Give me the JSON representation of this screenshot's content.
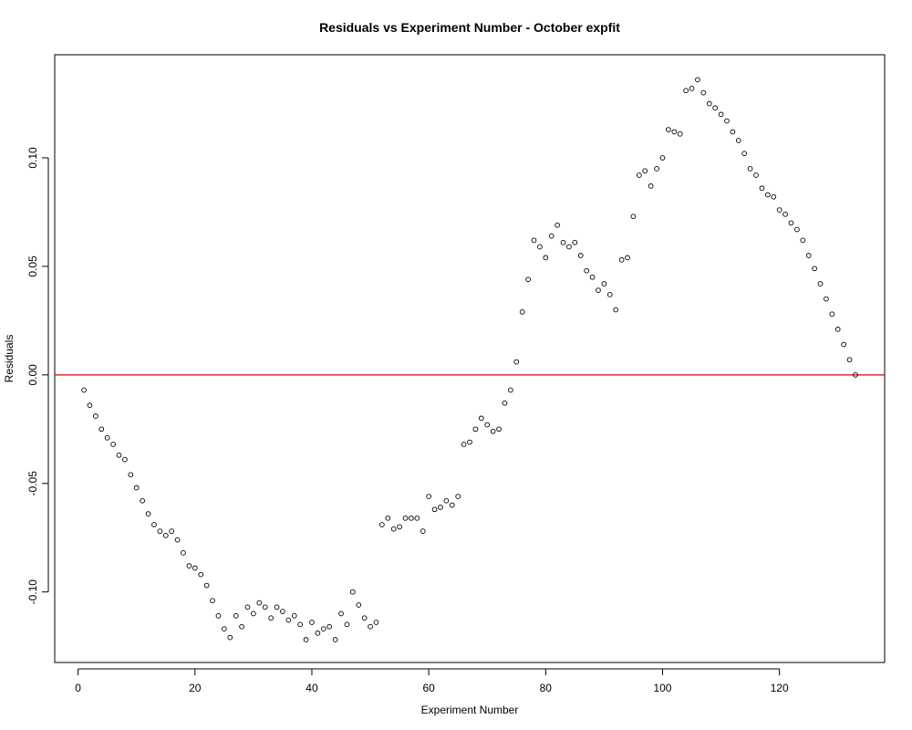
{
  "chart_data": {
    "type": "scatter",
    "title": "Residuals vs Experiment Number - October expfit",
    "xlabel": "Experiment Number",
    "ylabel": "Residuals",
    "xlim": [
      -4,
      138
    ],
    "ylim": [
      -0.1325,
      0.1475
    ],
    "xticks": [
      0,
      20,
      40,
      60,
      80,
      100,
      120
    ],
    "yticks": [
      -0.1,
      -0.05,
      0.0,
      0.05,
      0.1
    ],
    "ytick_labels": [
      "-0.10",
      "-0.05",
      "0.00",
      "0.05",
      "0.10"
    ],
    "reference_line": {
      "y": 0,
      "color": "#e00000"
    },
    "marker": "open-circle",
    "grid": false,
    "x": [
      1,
      2,
      3,
      4,
      5,
      6,
      7,
      8,
      9,
      10,
      11,
      12,
      13,
      14,
      15,
      16,
      17,
      18,
      19,
      20,
      21,
      22,
      23,
      24,
      25,
      26,
      27,
      28,
      29,
      30,
      31,
      32,
      33,
      34,
      35,
      36,
      37,
      38,
      39,
      40,
      41,
      42,
      43,
      44,
      45,
      46,
      47,
      48,
      49,
      50,
      51,
      52,
      53,
      54,
      55,
      56,
      57,
      58,
      59,
      60,
      61,
      62,
      63,
      64,
      65,
      66,
      67,
      68,
      69,
      70,
      71,
      72,
      73,
      74,
      75,
      76,
      77,
      78,
      79,
      80,
      81,
      82,
      83,
      84,
      85,
      86,
      87,
      88,
      89,
      90,
      91,
      92,
      93,
      94,
      95,
      96,
      97,
      98,
      99,
      100,
      101,
      102,
      103,
      104,
      105,
      106,
      107,
      108,
      109,
      110,
      111,
      112,
      113,
      114,
      115,
      116,
      117,
      118,
      119,
      120,
      121,
      122,
      123,
      124,
      125,
      126,
      127,
      128,
      129,
      130,
      131,
      132,
      133
    ],
    "y": [
      -0.007,
      -0.014,
      -0.019,
      -0.025,
      -0.029,
      -0.032,
      -0.037,
      -0.039,
      -0.046,
      -0.052,
      -0.058,
      -0.064,
      -0.069,
      -0.072,
      -0.074,
      -0.072,
      -0.076,
      -0.082,
      -0.088,
      -0.089,
      -0.092,
      -0.097,
      -0.104,
      -0.111,
      -0.117,
      -0.121,
      -0.111,
      -0.116,
      -0.107,
      -0.11,
      -0.105,
      -0.107,
      -0.112,
      -0.107,
      -0.109,
      -0.113,
      -0.111,
      -0.115,
      -0.122,
      -0.114,
      -0.119,
      -0.117,
      -0.116,
      -0.122,
      -0.11,
      -0.115,
      -0.1,
      -0.106,
      -0.112,
      -0.116,
      -0.114,
      -0.069,
      -0.066,
      -0.071,
      -0.07,
      -0.066,
      -0.066,
      -0.066,
      -0.072,
      -0.056,
      -0.062,
      -0.061,
      -0.058,
      -0.06,
      -0.056,
      -0.032,
      -0.031,
      -0.025,
      -0.02,
      -0.023,
      -0.026,
      -0.025,
      -0.013,
      -0.007,
      0.006,
      0.029,
      0.044,
      0.062,
      0.059,
      0.054,
      0.064,
      0.069,
      0.061,
      0.059,
      0.061,
      0.055,
      0.048,
      0.045,
      0.039,
      0.042,
      0.037,
      0.03,
      0.053,
      0.054,
      0.073,
      0.092,
      0.094,
      0.087,
      0.095,
      0.1,
      0.113,
      0.112,
      0.111,
      0.131,
      0.132,
      0.136,
      0.13,
      0.125,
      0.123,
      0.12,
      0.117,
      0.112,
      0.108,
      0.102,
      0.095,
      0.092,
      0.086,
      0.083,
      0.082,
      0.076,
      0.074,
      0.07,
      0.067,
      0.062,
      0.055,
      0.049,
      0.042,
      0.035,
      0.028,
      0.021,
      0.014,
      0.007,
      0.0
    ]
  }
}
